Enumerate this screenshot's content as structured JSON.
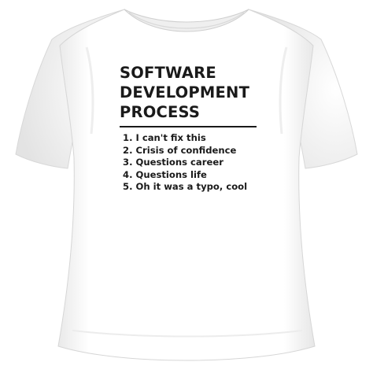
{
  "colors": {
    "background": "#ffffff",
    "shirt": "#ffffff",
    "shadow": "#dcdcdc",
    "text": "#1a1a1a"
  },
  "print": {
    "title_lines": [
      "SOFTWARE",
      "DEVELOPMENT",
      "PROCESS"
    ],
    "steps": [
      "1. I can't fix this",
      "2. Crisis of confidence",
      "3. Questions career",
      "4. Questions life",
      "5. Oh it was a typo, cool"
    ]
  }
}
